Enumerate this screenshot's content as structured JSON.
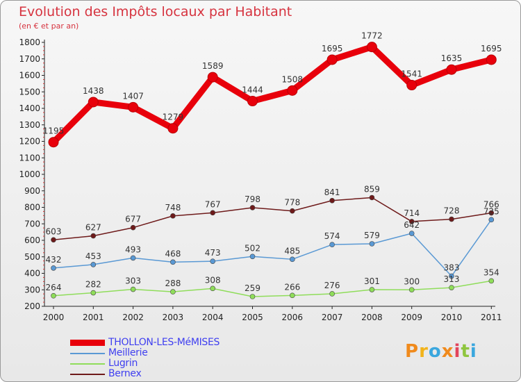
{
  "header": {
    "title": "Evolution des Impôts locaux par Habitant",
    "subtitle": "(en € et par an)"
  },
  "brand": {
    "letters": [
      "P",
      "r",
      "o",
      "x",
      "i",
      "t",
      "i"
    ],
    "colors": [
      "#f08a1c",
      "#f2b31a",
      "#3aa7de",
      "#f08a1c",
      "#e2445c",
      "#8fc63f",
      "#3aa7de"
    ]
  },
  "chart_data": {
    "type": "line",
    "title": "Evolution des Impôts locaux par Habitant",
    "subtitle": "(en € et par an)",
    "xlabel": "",
    "ylabel": "",
    "x": [
      "2000",
      "2001",
      "2002",
      "2003",
      "2004",
      "2005",
      "2006",
      "2007",
      "2008",
      "2009",
      "2010",
      "2011"
    ],
    "ylim": [
      200,
      1800
    ],
    "yticks": [
      "200",
      "300",
      "400",
      "500",
      "600",
      "700",
      "800",
      "900",
      "1000",
      "1100",
      "1200",
      "1300",
      "1400",
      "1500",
      "1600",
      "1700",
      "1800"
    ],
    "grid": false,
    "legend_position": "bottom-left",
    "series": [
      {
        "name": "THOLLON-LES-MéMISES",
        "color": "#e8000b",
        "emphasis": true,
        "values": [
          1195,
          1438,
          1407,
          1279,
          1589,
          1444,
          1508,
          1695,
          1772,
          1541,
          1635,
          1695
        ]
      },
      {
        "name": "Meillerie",
        "color": "#5a99d4",
        "emphasis": false,
        "values": [
          432,
          453,
          493,
          468,
          473,
          502,
          485,
          574,
          579,
          642,
          383,
          725
        ]
      },
      {
        "name": "Lugrin",
        "color": "#8fdd5a",
        "emphasis": false,
        "values": [
          264,
          282,
          303,
          288,
          308,
          259,
          266,
          276,
          301,
          300,
          313,
          354
        ]
      },
      {
        "name": "Bernex",
        "color": "#6e1a1a",
        "emphasis": false,
        "values": [
          603,
          627,
          677,
          748,
          767,
          798,
          778,
          841,
          859,
          714,
          728,
          766
        ]
      }
    ]
  }
}
